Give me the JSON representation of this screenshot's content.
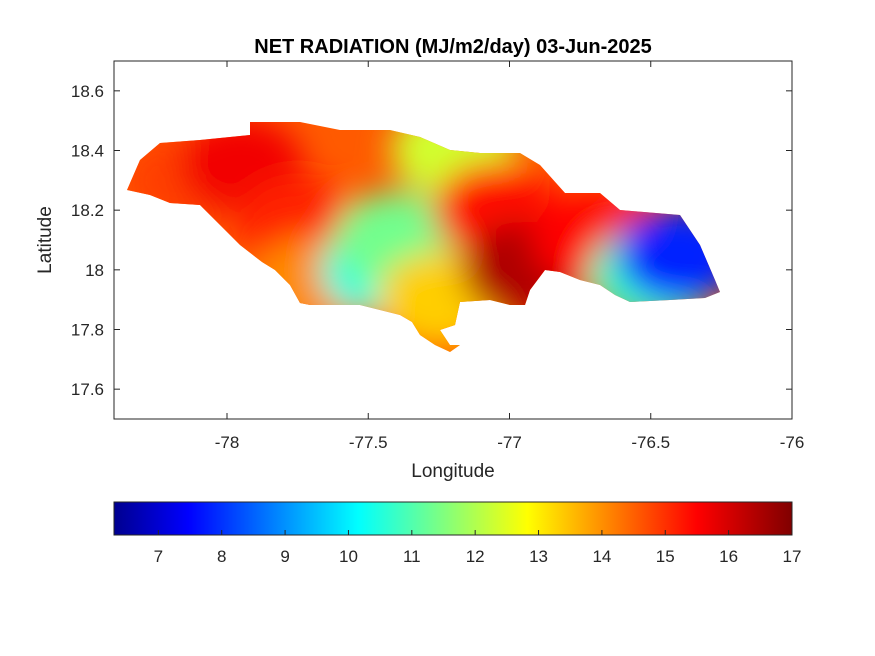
{
  "chart_data": {
    "type": "heatmap",
    "title": "NET RADIATION (MJ/m2/day) 03-Jun-2025",
    "xlabel": "Longitude",
    "ylabel": "Latitude",
    "xlim": [
      -78.4,
      -76
    ],
    "ylim": [
      17.5,
      18.7
    ],
    "xticks": [
      -78,
      -77.5,
      -77,
      -76.5,
      -76
    ],
    "yticks": [
      17.6,
      17.8,
      18,
      18.2,
      18.4,
      18.6
    ],
    "colorbar": {
      "colormap": "jet",
      "range": [
        6.3,
        17
      ],
      "ticks": [
        7,
        8,
        9,
        10,
        11,
        12,
        13,
        14,
        15,
        16,
        17
      ],
      "orientation": "horizontal",
      "placement": "below"
    },
    "regions": [
      {
        "lon": -78.15,
        "lat": 18.3,
        "value": 15.0
      },
      {
        "lon": -77.95,
        "lat": 18.35,
        "value": 15.8
      },
      {
        "lon": -77.75,
        "lat": 18.15,
        "value": 15.3
      },
      {
        "lon": -77.7,
        "lat": 17.95,
        "value": 14.2
      },
      {
        "lon": -77.45,
        "lat": 18.0,
        "value": 10.6
      },
      {
        "lon": -77.4,
        "lat": 18.1,
        "value": 11.5
      },
      {
        "lon": -77.2,
        "lat": 18.4,
        "value": 12.5
      },
      {
        "lon": -77.25,
        "lat": 17.9,
        "value": 13.5
      },
      {
        "lon": -77.05,
        "lat": 18.2,
        "value": 15.5
      },
      {
        "lon": -76.95,
        "lat": 18.0,
        "value": 16.5
      },
      {
        "lon": -76.7,
        "lat": 18.1,
        "value": 15.6
      },
      {
        "lon": -76.5,
        "lat": 17.98,
        "value": 11.0
      },
      {
        "lon": -76.4,
        "lat": 18.05,
        "value": 8.0
      }
    ]
  }
}
